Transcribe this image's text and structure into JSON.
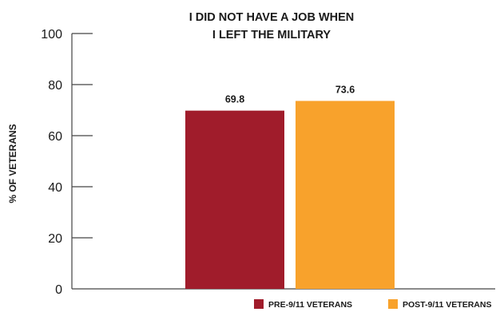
{
  "chart_data": {
    "type": "bar",
    "title": "I DID NOT HAVE A JOB WHEN\nI LEFT THE MILITARY",
    "ylabel": "% OF VETERANS",
    "xlabel": "",
    "ylim": [
      0,
      100
    ],
    "yticks": [
      0,
      20,
      40,
      60,
      80,
      100
    ],
    "grid": false,
    "legend_position": "bottom-right",
    "series": [
      {
        "name": "PRE-9/11 VETERANS",
        "value": 69.8,
        "label": "69.8",
        "color": "#a01c2b"
      },
      {
        "name": "POST-9/11 VETERANS",
        "value": 73.6,
        "label": "73.6",
        "color": "#f8a22c"
      }
    ]
  }
}
